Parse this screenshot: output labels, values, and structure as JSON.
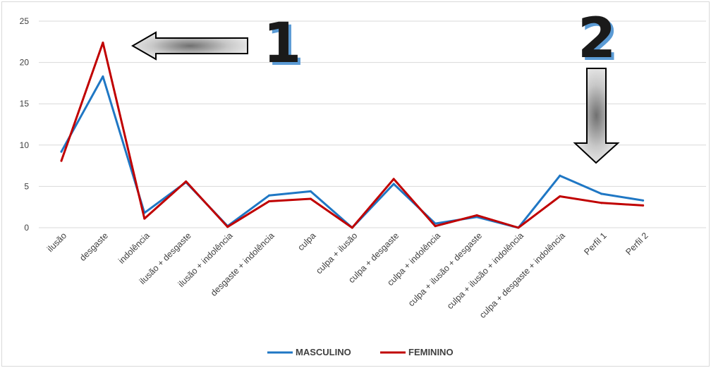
{
  "chart_data": {
    "type": "line",
    "categories": [
      "ilusão",
      "desgaste",
      "indolência",
      "ilusão + desgaste",
      "ilusão + indolência",
      "desgaste + indolência",
      "culpa",
      "culpa + ilusão",
      "culpa + desgaste",
      "culpa + indolência",
      "culpa + ilusão + desgaste",
      "culpa + ilusão + indolência",
      "culpa + desgaste + indolência",
      "Perfil 1",
      "Perfil 2"
    ],
    "series": [
      {
        "name": "MASCULINO",
        "color": "#1f77c4",
        "values": [
          9.2,
          18.3,
          1.8,
          5.5,
          0.2,
          3.9,
          4.4,
          0.0,
          5.3,
          0.5,
          1.3,
          0.0,
          6.3,
          4.1,
          3.3
        ]
      },
      {
        "name": "FEMININO",
        "color": "#c00000",
        "values": [
          8.1,
          22.4,
          1.1,
          5.6,
          0.1,
          3.2,
          3.5,
          0.0,
          5.9,
          0.2,
          1.5,
          0.0,
          3.8,
          3.0,
          2.7
        ]
      }
    ],
    "ylim": [
      0,
      25
    ],
    "yticks": [
      0,
      5,
      10,
      15,
      20,
      25
    ],
    "grid": true,
    "legend_position": "bottom",
    "annotations": [
      {
        "label": "1",
        "arrow_direction": "left",
        "target_category": "desgaste"
      },
      {
        "label": "2",
        "arrow_direction": "down",
        "target_category": "culpa + desgaste + indolência"
      }
    ]
  }
}
